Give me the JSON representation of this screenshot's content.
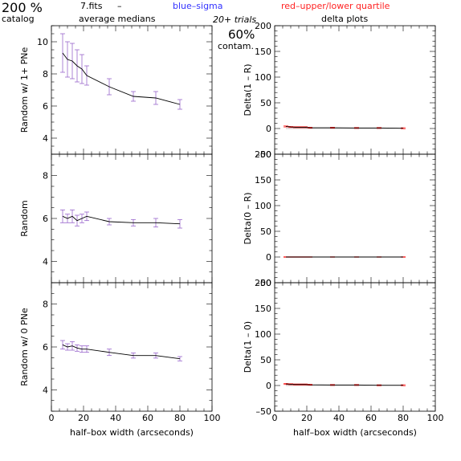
{
  "header": {
    "percent": "200 %",
    "catalog": "catalog",
    "fits": "7.fits",
    "dash": "–",
    "medians": "average medians",
    "blue_sigma": "blue–sigma",
    "red_quartile": "red–upper/lower quartile",
    "trials": "20+ trials",
    "delta_title": "delta plots",
    "contam_percent": "60%",
    "contam": "contam."
  },
  "colors": {
    "sigma": "#3333ff",
    "quartile": "#ff2222",
    "errorbar": "#9966cc",
    "line": "#000000",
    "zero_line": "#888888"
  },
  "chart_data": [
    {
      "type": "line",
      "ylabel": "Random w/ 1+ PNe",
      "xlim": [
        0,
        100
      ],
      "ylim": [
        3,
        11
      ],
      "xticks": [
        0,
        20,
        40,
        60,
        80,
        100
      ],
      "xtick_labels": [
        "",
        "",
        "",
        "",
        "",
        ""
      ],
      "yticks": [
        4,
        6,
        8,
        10
      ],
      "ytick_labels": [
        "4",
        "6",
        "8",
        "10"
      ],
      "x": [
        7,
        10,
        13,
        16,
        19,
        22,
        36,
        51,
        65,
        80
      ],
      "y": [
        9.3,
        8.9,
        8.8,
        8.5,
        8.3,
        7.9,
        7.2,
        6.6,
        6.5,
        6.1
      ],
      "err": [
        1.2,
        1.1,
        1.1,
        1.0,
        0.9,
        0.6,
        0.5,
        0.3,
        0.4,
        0.3
      ]
    },
    {
      "type": "line",
      "ylabel": "Delta(1 – R)",
      "xlim": [
        0,
        100
      ],
      "ylim": [
        -50,
        200
      ],
      "xticks": [
        0,
        20,
        40,
        60,
        80,
        100
      ],
      "xtick_labels": [
        "",
        "",
        "",
        "",
        "",
        ""
      ],
      "yticks": [
        -50,
        0,
        50,
        100,
        150,
        200
      ],
      "ytick_labels": [
        "–50",
        "0",
        "50",
        "100",
        "150",
        "200"
      ],
      "x": [
        7,
        10,
        13,
        16,
        19,
        22,
        36,
        51,
        65,
        80
      ],
      "y": [
        4,
        3,
        2.5,
        2.5,
        2.5,
        1.5,
        1.5,
        1,
        1,
        0.5
      ],
      "err": [
        1,
        1,
        1,
        1,
        1,
        1,
        1,
        1,
        1,
        1
      ]
    },
    {
      "type": "line",
      "ylabel": "Random",
      "xlim": [
        0,
        100
      ],
      "ylim": [
        3,
        9
      ],
      "xticks": [
        0,
        20,
        40,
        60,
        80,
        100
      ],
      "xtick_labels": [
        "",
        "",
        "",
        "",
        "",
        ""
      ],
      "yticks": [
        4,
        6,
        8
      ],
      "ytick_labels": [
        "4",
        "6",
        "8"
      ],
      "x": [
        7,
        10,
        13,
        16,
        19,
        22,
        36,
        51,
        65,
        80
      ],
      "y": [
        6.1,
        6.0,
        6.1,
        5.9,
        6.0,
        6.1,
        5.85,
        5.8,
        5.8,
        5.75
      ],
      "err": [
        0.3,
        0.2,
        0.3,
        0.25,
        0.2,
        0.2,
        0.15,
        0.15,
        0.2,
        0.2
      ]
    },
    {
      "type": "line",
      "ylabel": "Delta(0 – R)",
      "xlim": [
        0,
        100
      ],
      "ylim": [
        -50,
        200
      ],
      "xticks": [
        0,
        20,
        40,
        60,
        80,
        100
      ],
      "xtick_labels": [
        "",
        "",
        "",
        "",
        "",
        ""
      ],
      "yticks": [
        -50,
        0,
        50,
        100,
        150,
        200
      ],
      "ytick_labels": [
        "–50",
        "0",
        "50",
        "100",
        "150",
        "200"
      ],
      "x": [
        7,
        10,
        13,
        16,
        19,
        22,
        36,
        51,
        65,
        80
      ],
      "y": [
        0,
        0,
        0,
        0,
        0,
        0,
        0,
        0,
        0,
        0
      ],
      "err": [
        0.5,
        0.5,
        0.5,
        0.5,
        0.5,
        0.5,
        0.5,
        0.5,
        0.5,
        0.5
      ]
    },
    {
      "type": "line",
      "ylabel": "Random w/ 0 PNe",
      "xlabel": "half–box width (arcseconds)",
      "xlim": [
        0,
        100
      ],
      "ylim": [
        3,
        9
      ],
      "xticks": [
        0,
        20,
        40,
        60,
        80,
        100
      ],
      "xtick_labels": [
        "0",
        "20",
        "40",
        "60",
        "80",
        "100"
      ],
      "yticks": [
        4,
        6,
        8
      ],
      "ytick_labels": [
        "4",
        "6",
        "8"
      ],
      "x": [
        7,
        10,
        13,
        16,
        19,
        22,
        36,
        51,
        65,
        80
      ],
      "y": [
        6.1,
        6.0,
        6.05,
        5.95,
        5.9,
        5.9,
        5.75,
        5.6,
        5.6,
        5.45
      ],
      "err": [
        0.2,
        0.15,
        0.2,
        0.15,
        0.15,
        0.15,
        0.15,
        0.12,
        0.12,
        0.1
      ]
    },
    {
      "type": "line",
      "ylabel": "Delta(1 – 0)",
      "xlabel": "half–box width (arcseconds)",
      "xlim": [
        0,
        100
      ],
      "ylim": [
        -50,
        200
      ],
      "xticks": [
        0,
        20,
        40,
        60,
        80,
        100
      ],
      "xtick_labels": [
        "0",
        "20",
        "40",
        "60",
        "80",
        "100"
      ],
      "yticks": [
        -50,
        0,
        50,
        100,
        150,
        200
      ],
      "ytick_labels": [
        "–50",
        "0",
        "50",
        "100",
        "150",
        "200"
      ],
      "x": [
        7,
        10,
        13,
        16,
        19,
        22,
        36,
        51,
        65,
        80
      ],
      "y": [
        3,
        2.5,
        2,
        2,
        2,
        1.5,
        1,
        1,
        0.5,
        0.5
      ],
      "err": [
        1,
        1,
        1,
        1,
        1,
        1,
        1,
        1,
        1,
        1
      ]
    }
  ]
}
